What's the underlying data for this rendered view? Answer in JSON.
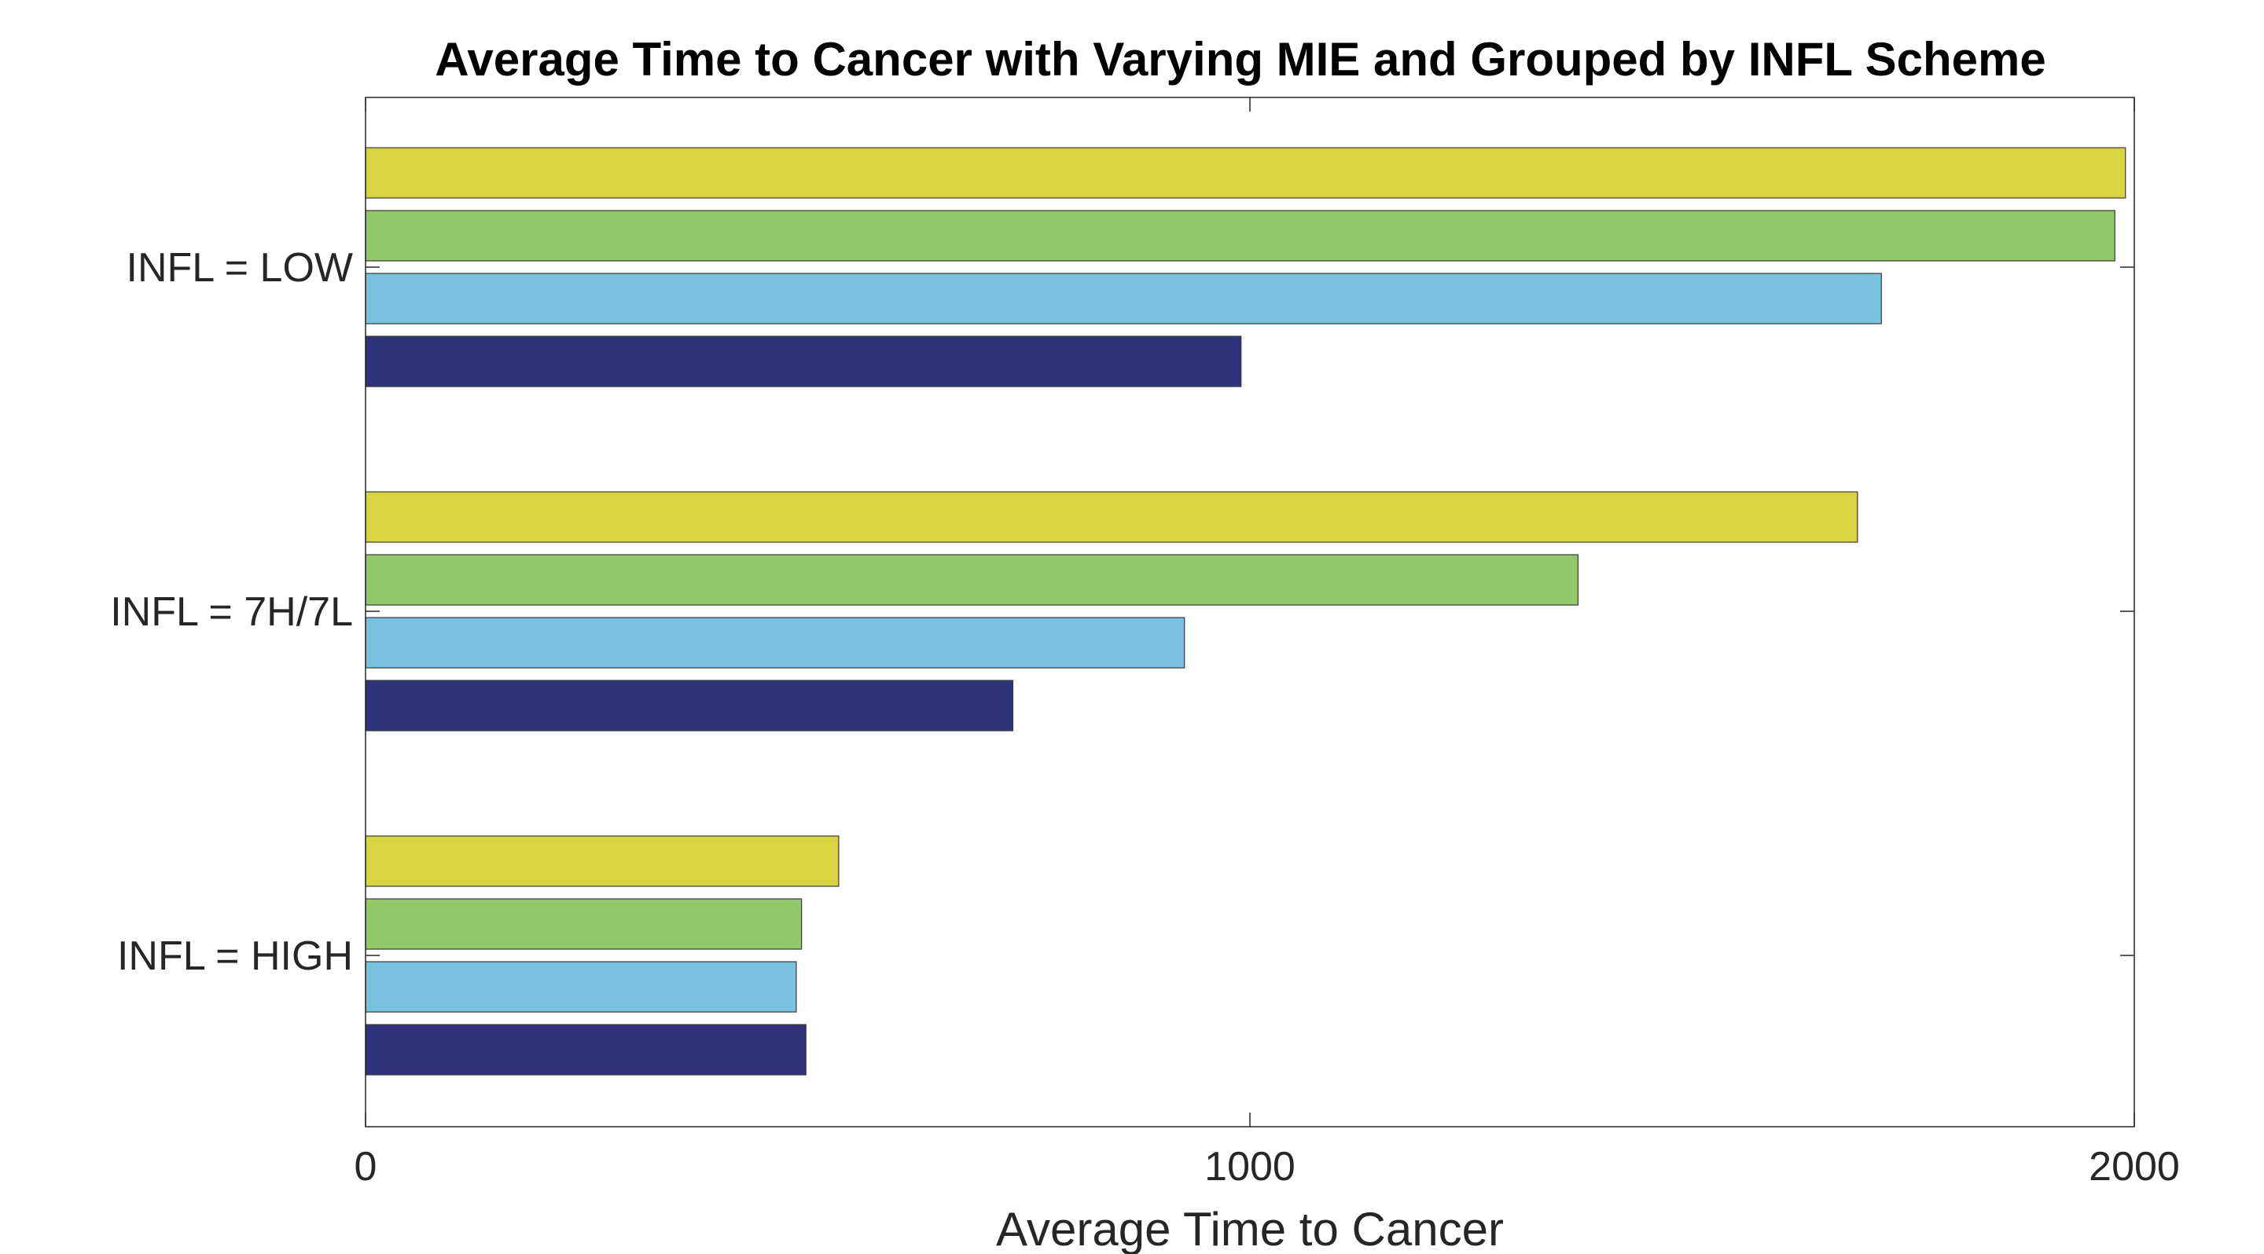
{
  "chart_data": {
    "type": "bar",
    "orientation": "horizontal",
    "title": "Average Time to Cancer with Varying MIE and Grouped by INFL Scheme",
    "xlabel": "Average Time to Cancer",
    "ylabel": "",
    "xlim": [
      0,
      2000
    ],
    "xticks": [
      "0",
      "1000",
      "2000"
    ],
    "grid": false,
    "legend": "none",
    "categories": [
      "INFL = LOW",
      "INFL = 7H/7L",
      "INFL = HIGH"
    ],
    "series": [
      {
        "color": "#d9d442",
        "values": [
          1990,
          1687,
          535
        ]
      },
      {
        "color": "#93c86a",
        "values": [
          1978,
          1371,
          493
        ]
      },
      {
        "color": "#78c2df",
        "values": [
          1714,
          926,
          487
        ]
      },
      {
        "color": "#2f347a",
        "values": [
          990,
          732,
          498
        ]
      }
    ]
  }
}
